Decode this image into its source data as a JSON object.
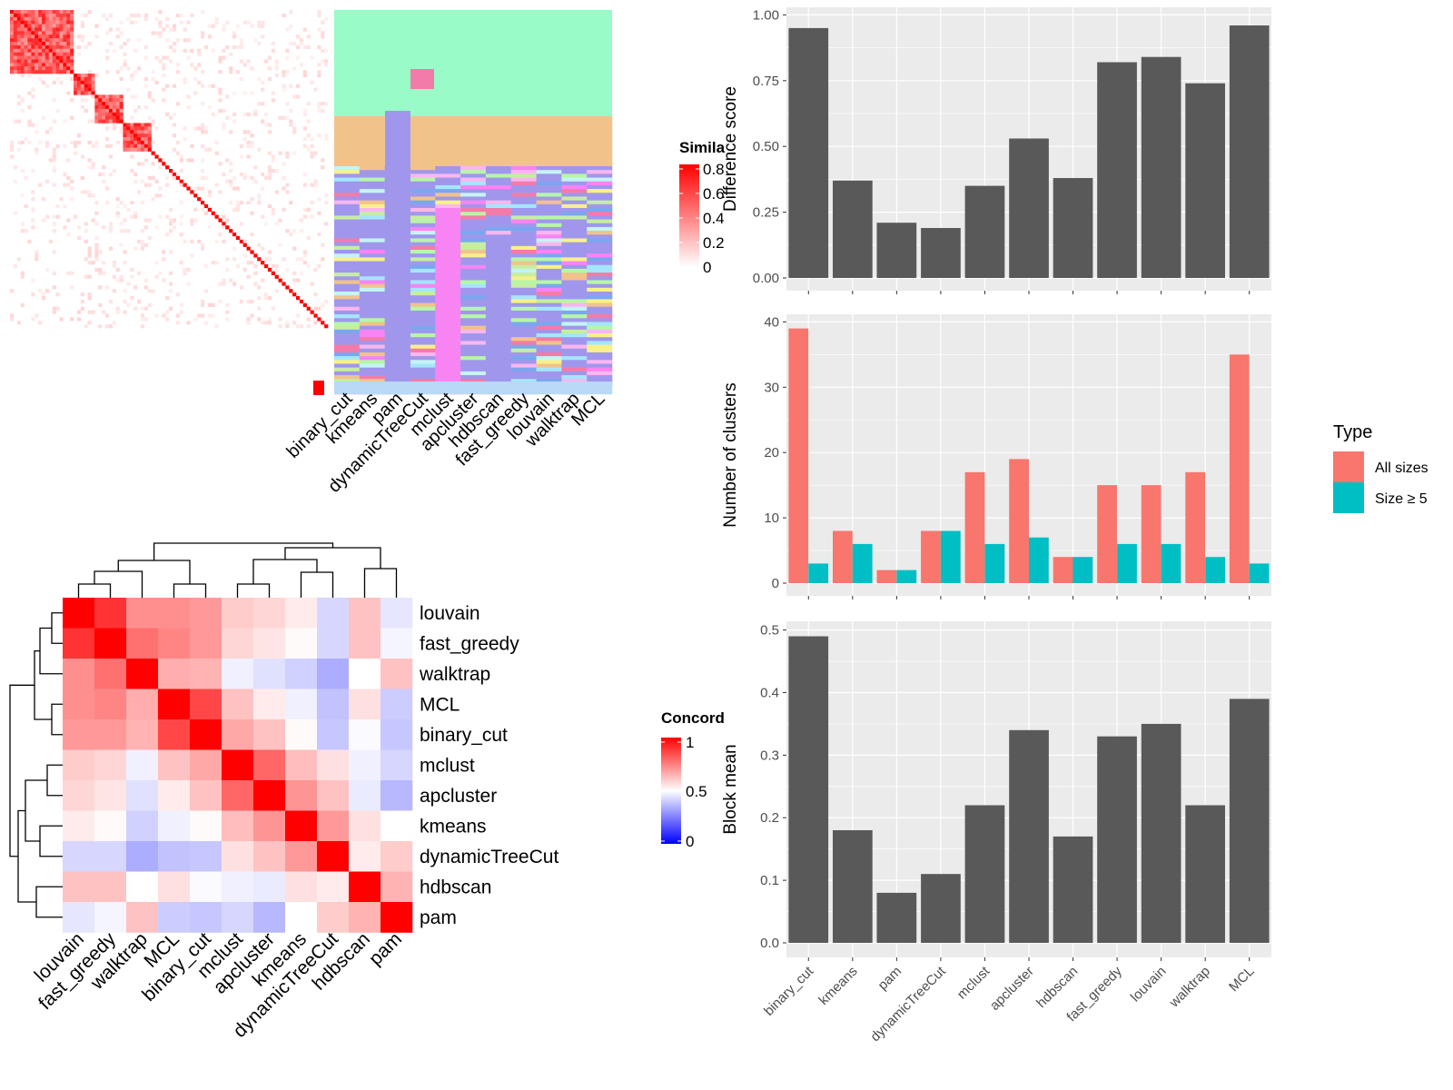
{
  "colors": {
    "red": "#ff0000",
    "white": "#ffffff",
    "blue": "#0000ff",
    "panel_bg": "#ebebeb",
    "bar_dark": "#595959",
    "all_sizes": "#f8766d",
    "size5": "#00bfc4"
  },
  "similarity_legend": {
    "title": "Simila",
    "ticks": [
      "0.8",
      "0.6",
      "0.4",
      "0.2",
      "0"
    ]
  },
  "concordance_legend": {
    "title": "Concord",
    "ticks": [
      "1",
      "0.5",
      "0"
    ]
  },
  "membership": {
    "methods": [
      "binary_cut",
      "kmeans",
      "pam",
      "dynamicTreeCut",
      "mclust",
      "apcluster",
      "hdbscan",
      "fast_greedy",
      "louvain",
      "walktrap",
      "MCL"
    ]
  },
  "chart_data": [
    {
      "type": "bar",
      "categories": [
        "binary_cut",
        "kmeans",
        "pam",
        "dynamicTreeCut",
        "mclust",
        "apcluster",
        "hdbscan",
        "fast_greedy",
        "louvain",
        "walktrap",
        "MCL"
      ],
      "values": [
        0.95,
        0.37,
        0.21,
        0.19,
        0.35,
        0.53,
        0.38,
        0.82,
        0.84,
        0.74,
        0.96
      ],
      "ylabel": "Difference score",
      "ylim": [
        0,
        1
      ],
      "yticks": [
        "0.00",
        "0.25",
        "0.50",
        "0.75",
        "1.00"
      ],
      "grid": true
    },
    {
      "type": "bar",
      "categories": [
        "binary_cut",
        "kmeans",
        "pam",
        "dynamicTreeCut",
        "mclust",
        "apcluster",
        "hdbscan",
        "fast_greedy",
        "louvain",
        "walktrap",
        "MCL"
      ],
      "series": [
        {
          "name": "All sizes",
          "values": [
            39,
            8,
            2,
            8,
            17,
            19,
            4,
            15,
            15,
            17,
            35
          ]
        },
        {
          "name": "Size ≥ 5",
          "values": [
            3,
            6,
            2,
            8,
            6,
            7,
            4,
            6,
            6,
            4,
            3
          ]
        }
      ],
      "ylabel": "Number of clusters",
      "ylim": [
        0,
        40
      ],
      "yticks": [
        "0",
        "10",
        "20",
        "30",
        "40"
      ],
      "legend": {
        "title": "Type",
        "placement": "right"
      },
      "grid": true
    },
    {
      "type": "bar",
      "categories": [
        "binary_cut",
        "kmeans",
        "pam",
        "dynamicTreeCut",
        "mclust",
        "apcluster",
        "hdbscan",
        "fast_greedy",
        "louvain",
        "walktrap",
        "MCL"
      ],
      "values": [
        0.49,
        0.18,
        0.08,
        0.11,
        0.22,
        0.34,
        0.17,
        0.33,
        0.35,
        0.22,
        0.39
      ],
      "ylabel": "Block mean",
      "ylim": [
        0,
        0.5
      ],
      "yticks": [
        "0.0",
        "0.1",
        "0.2",
        "0.3",
        "0.4",
        "0.5"
      ],
      "grid": true
    },
    {
      "type": "heatmap",
      "rows": [
        "louvain",
        "fast_greedy",
        "walktrap",
        "MCL",
        "binary_cut",
        "mclust",
        "apcluster",
        "kmeans",
        "dynamicTreeCut",
        "hdbscan",
        "pam"
      ],
      "cols": [
        "louvain",
        "fast_greedy",
        "walktrap",
        "MCL",
        "binary_cut",
        "mclust",
        "apcluster",
        "kmeans",
        "dynamicTreeCut",
        "hdbscan",
        "pam"
      ],
      "values": [
        [
          1.0,
          0.9,
          0.72,
          0.72,
          0.7,
          0.6,
          0.58,
          0.54,
          0.42,
          0.62,
          0.45
        ],
        [
          0.9,
          1.0,
          0.78,
          0.74,
          0.7,
          0.58,
          0.55,
          0.51,
          0.42,
          0.62,
          0.48
        ],
        [
          0.72,
          0.78,
          1.0,
          0.66,
          0.65,
          0.47,
          0.44,
          0.41,
          0.34,
          0.5,
          0.62
        ],
        [
          0.72,
          0.74,
          0.66,
          1.0,
          0.86,
          0.62,
          0.54,
          0.47,
          0.38,
          0.56,
          0.4
        ],
        [
          0.7,
          0.7,
          0.65,
          0.86,
          1.0,
          0.67,
          0.62,
          0.51,
          0.39,
          0.49,
          0.39
        ],
        [
          0.6,
          0.58,
          0.47,
          0.62,
          0.67,
          1.0,
          0.8,
          0.63,
          0.56,
          0.47,
          0.42
        ],
        [
          0.58,
          0.55,
          0.44,
          0.54,
          0.62,
          0.8,
          1.0,
          0.71,
          0.62,
          0.46,
          0.36
        ],
        [
          0.54,
          0.51,
          0.41,
          0.47,
          0.51,
          0.63,
          0.71,
          1.0,
          0.7,
          0.56,
          0.5
        ],
        [
          0.42,
          0.42,
          0.34,
          0.38,
          0.39,
          0.56,
          0.62,
          0.7,
          1.0,
          0.54,
          0.6
        ],
        [
          0.62,
          0.62,
          0.5,
          0.56,
          0.49,
          0.47,
          0.46,
          0.56,
          0.54,
          1.0,
          0.65
        ],
        [
          0.45,
          0.48,
          0.62,
          0.4,
          0.39,
          0.42,
          0.36,
          0.5,
          0.6,
          0.65,
          1.0
        ]
      ],
      "range": [
        0,
        1
      ]
    }
  ]
}
